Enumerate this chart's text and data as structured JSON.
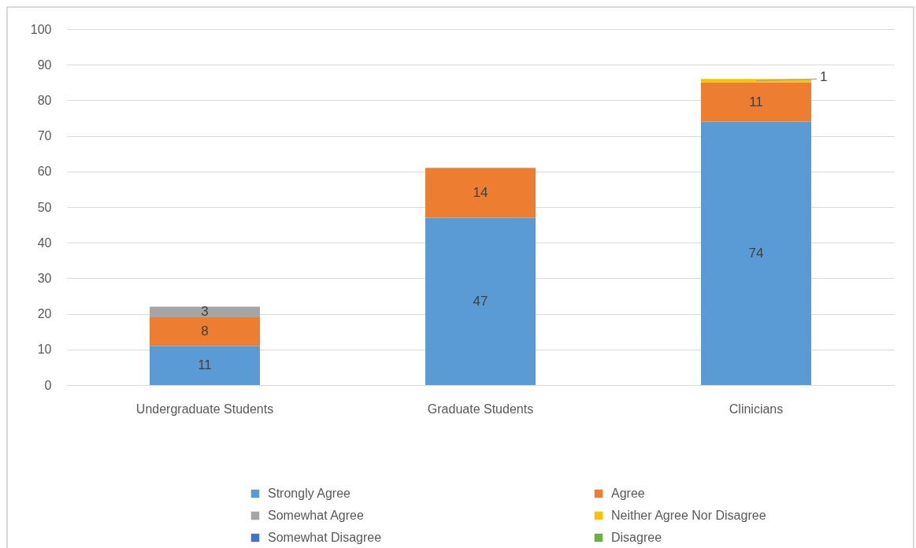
{
  "chart_data": {
    "type": "bar",
    "stacked": true,
    "categories": [
      "Undergraduate Students",
      "Graduate Students",
      "Clinicians"
    ],
    "series": [
      {
        "name": "Strongly Agree",
        "color": "#5b9bd5",
        "values": [
          11,
          47,
          74
        ]
      },
      {
        "name": "Agree",
        "color": "#ed7d31",
        "values": [
          8,
          14,
          11
        ]
      },
      {
        "name": "Somewhat Agree",
        "color": "#a5a5a5",
        "values": [
          3,
          null,
          null
        ]
      },
      {
        "name": "Neither Agree Nor Disagree",
        "color": "#ffc000",
        "values": [
          null,
          null,
          1
        ]
      },
      {
        "name": "Somewhat Disagree",
        "color": "#4472c4",
        "values": [
          null,
          null,
          null
        ]
      },
      {
        "name": "Disagree",
        "color": "#70ad47",
        "values": [
          null,
          null,
          null
        ]
      }
    ],
    "ylim": [
      0,
      100
    ],
    "yticks": [
      0,
      10,
      20,
      30,
      40,
      50,
      60,
      70,
      80,
      90,
      100
    ],
    "grid": "y",
    "legend": "bottom",
    "data_labels": true
  }
}
